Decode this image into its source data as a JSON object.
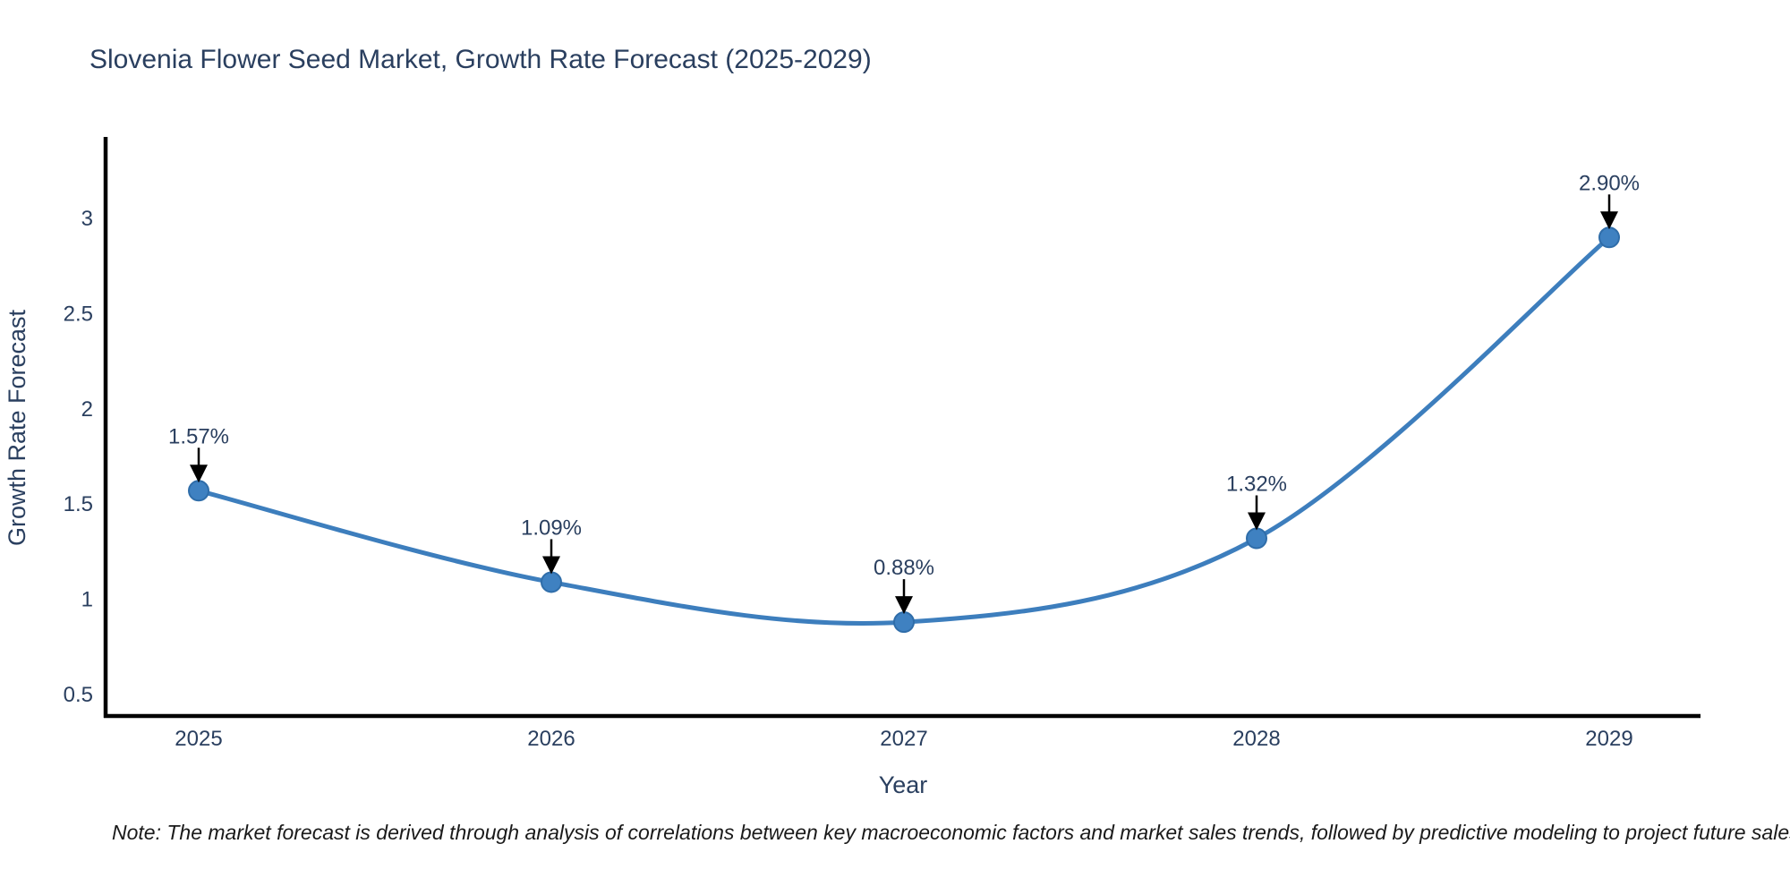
{
  "title": "Slovenia Flower Seed Market, Growth Rate Forecast (2025-2029)",
  "note": "Note: The market forecast is derived through analysis of correlations between key macroeconomic factors and market sales trends, followed by predictive modeling to project future sales",
  "chart_data": {
    "type": "line",
    "title": "Slovenia Flower Seed Market, Growth Rate Forecast (2025-2029)",
    "categories": [
      "2025",
      "2026",
      "2027",
      "2028",
      "2029"
    ],
    "series": [
      {
        "name": "Growth Rate Forecast",
        "values": [
          1.57,
          1.09,
          0.88,
          1.32,
          2.9
        ]
      }
    ],
    "data_labels": [
      "1.57%",
      "1.09%",
      "0.88%",
      "1.32%",
      "2.90%"
    ],
    "xlabel": "Year",
    "ylabel": "Growth Rate Forecast",
    "yticks": [
      0.5,
      1,
      1.5,
      2,
      2.5,
      3
    ],
    "ytick_labels": [
      "0.5",
      "1",
      "1.5",
      "2",
      "2.5",
      "3"
    ],
    "ylim": [
      0.38,
      3.41
    ],
    "grid": false,
    "legend": "none",
    "line_shape": "spline",
    "colors": {
      "line": "#3d7ebd",
      "marker_fill": "#3f81c1",
      "marker_edge": "#2f6da9",
      "axis_line": "#000000",
      "tick_label": "#2a3f5f",
      "axis_title": "#2a3f5f",
      "annotation_text": "#2a3f5f",
      "annotation_arrow": "#000000",
      "title": "#2a3f5f",
      "background": "#ffffff"
    }
  }
}
